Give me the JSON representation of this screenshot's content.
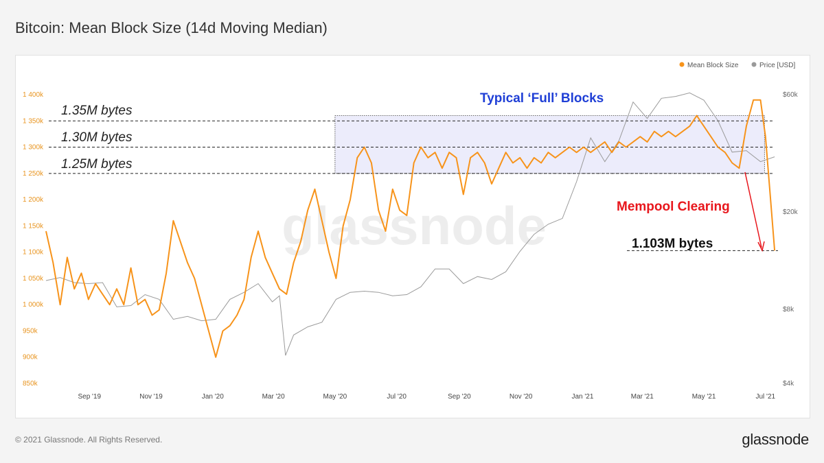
{
  "title": "Bitcoin: Mean Block Size (14d Moving Median)",
  "footer": {
    "copyright": "© 2021 Glassnode. All Rights Reserved.",
    "logo": "glassnode"
  },
  "watermark": "glassnode",
  "colors": {
    "block_size": "#f7931a",
    "price": "#9a9a9a",
    "highlight": "#ececfb",
    "blue": "#1f3fd6",
    "red": "#e8161c"
  },
  "annotations": {
    "typical_full": "Typical ‘Full’ Blocks",
    "l135": "1.35M bytes",
    "l130": "1.30M bytes",
    "l125": "1.25M bytes",
    "mempool": "Mempool Clearing",
    "l1103": "1.103M bytes"
  },
  "chart_data": {
    "type": "line",
    "title": "Bitcoin: Mean Block Size (14d Moving Median)",
    "legend": {
      "position": "top-right",
      "items": [
        "Mean Block Size",
        "Price [USD]"
      ]
    },
    "x_ticks": [
      "Sep '19",
      "Nov '19",
      "Jan '20",
      "Mar '20",
      "May '20",
      "Jul '20",
      "Sep '20",
      "Nov '20",
      "Jan '21",
      "Mar '21",
      "May '21",
      "Jul '21"
    ],
    "x_ticks_dates": [
      "2019-09-01",
      "2019-11-01",
      "2020-01-01",
      "2020-03-01",
      "2020-05-01",
      "2020-07-01",
      "2020-09-01",
      "2020-11-01",
      "2021-01-01",
      "2021-03-01",
      "2021-05-01",
      "2021-07-01"
    ],
    "y_left": {
      "ticks": [
        "850k",
        "900k",
        "950k",
        "1 000k",
        "1 050k",
        "1 100k",
        "1 150k",
        "1 200k",
        "1 250k",
        "1 300k",
        "1 350k",
        "1 400k"
      ],
      "ylim": [
        850000,
        1400000
      ]
    },
    "y_right": {
      "scale": "log",
      "ticks": [
        "$4k",
        "$8k",
        "$20k",
        "$60k"
      ],
      "values": [
        4000,
        8000,
        20000,
        60000
      ]
    },
    "series": [
      {
        "name": "Mean Block Size",
        "axis": "left",
        "points": [
          [
            "2019-07-20",
            1140000
          ],
          [
            "2019-07-27",
            1080000
          ],
          [
            "2019-08-03",
            1000000
          ],
          [
            "2019-08-10",
            1090000
          ],
          [
            "2019-08-17",
            1030000
          ],
          [
            "2019-08-24",
            1060000
          ],
          [
            "2019-08-31",
            1010000
          ],
          [
            "2019-09-07",
            1040000
          ],
          [
            "2019-09-14",
            1020000
          ],
          [
            "2019-09-21",
            1000000
          ],
          [
            "2019-09-28",
            1030000
          ],
          [
            "2019-10-05",
            1000000
          ],
          [
            "2019-10-12",
            1070000
          ],
          [
            "2019-10-19",
            1000000
          ],
          [
            "2019-10-26",
            1010000
          ],
          [
            "2019-11-02",
            980000
          ],
          [
            "2019-11-09",
            990000
          ],
          [
            "2019-11-16",
            1060000
          ],
          [
            "2019-11-23",
            1160000
          ],
          [
            "2019-11-30",
            1120000
          ],
          [
            "2019-12-07",
            1080000
          ],
          [
            "2019-12-14",
            1050000
          ],
          [
            "2019-12-21",
            1000000
          ],
          [
            "2019-12-28",
            950000
          ],
          [
            "2020-01-04",
            900000
          ],
          [
            "2020-01-11",
            950000
          ],
          [
            "2020-01-18",
            960000
          ],
          [
            "2020-01-25",
            980000
          ],
          [
            "2020-02-01",
            1010000
          ],
          [
            "2020-02-08",
            1090000
          ],
          [
            "2020-02-15",
            1140000
          ],
          [
            "2020-02-22",
            1090000
          ],
          [
            "2020-02-29",
            1060000
          ],
          [
            "2020-03-07",
            1030000
          ],
          [
            "2020-03-14",
            1020000
          ],
          [
            "2020-03-21",
            1080000
          ],
          [
            "2020-03-28",
            1120000
          ],
          [
            "2020-04-04",
            1180000
          ],
          [
            "2020-04-11",
            1220000
          ],
          [
            "2020-04-18",
            1160000
          ],
          [
            "2020-04-25",
            1100000
          ],
          [
            "2020-05-02",
            1050000
          ],
          [
            "2020-05-09",
            1150000
          ],
          [
            "2020-05-16",
            1200000
          ],
          [
            "2020-05-23",
            1280000
          ],
          [
            "2020-05-30",
            1300000
          ],
          [
            "2020-06-06",
            1270000
          ],
          [
            "2020-06-13",
            1180000
          ],
          [
            "2020-06-20",
            1140000
          ],
          [
            "2020-06-27",
            1220000
          ],
          [
            "2020-07-04",
            1180000
          ],
          [
            "2020-07-11",
            1170000
          ],
          [
            "2020-07-18",
            1270000
          ],
          [
            "2020-07-25",
            1300000
          ],
          [
            "2020-08-01",
            1280000
          ],
          [
            "2020-08-08",
            1290000
          ],
          [
            "2020-08-15",
            1260000
          ],
          [
            "2020-08-22",
            1290000
          ],
          [
            "2020-08-29",
            1280000
          ],
          [
            "2020-09-05",
            1210000
          ],
          [
            "2020-09-12",
            1280000
          ],
          [
            "2020-09-19",
            1290000
          ],
          [
            "2020-09-26",
            1270000
          ],
          [
            "2020-10-03",
            1230000
          ],
          [
            "2020-10-10",
            1260000
          ],
          [
            "2020-10-17",
            1290000
          ],
          [
            "2020-10-24",
            1270000
          ],
          [
            "2020-10-31",
            1280000
          ],
          [
            "2020-11-07",
            1260000
          ],
          [
            "2020-11-14",
            1280000
          ],
          [
            "2020-11-21",
            1270000
          ],
          [
            "2020-11-28",
            1290000
          ],
          [
            "2020-12-05",
            1280000
          ],
          [
            "2020-12-12",
            1290000
          ],
          [
            "2020-12-19",
            1300000
          ],
          [
            "2020-12-26",
            1290000
          ],
          [
            "2021-01-02",
            1300000
          ],
          [
            "2021-01-09",
            1290000
          ],
          [
            "2021-01-16",
            1300000
          ],
          [
            "2021-01-23",
            1310000
          ],
          [
            "2021-01-30",
            1290000
          ],
          [
            "2021-02-06",
            1310000
          ],
          [
            "2021-02-13",
            1300000
          ],
          [
            "2021-02-20",
            1310000
          ],
          [
            "2021-02-27",
            1320000
          ],
          [
            "2021-03-06",
            1310000
          ],
          [
            "2021-03-13",
            1330000
          ],
          [
            "2021-03-20",
            1320000
          ],
          [
            "2021-03-27",
            1330000
          ],
          [
            "2021-04-03",
            1320000
          ],
          [
            "2021-04-10",
            1330000
          ],
          [
            "2021-04-17",
            1340000
          ],
          [
            "2021-04-24",
            1360000
          ],
          [
            "2021-05-01",
            1340000
          ],
          [
            "2021-05-08",
            1320000
          ],
          [
            "2021-05-15",
            1300000
          ],
          [
            "2021-05-22",
            1290000
          ],
          [
            "2021-05-29",
            1270000
          ],
          [
            "2021-06-05",
            1260000
          ],
          [
            "2021-06-12",
            1340000
          ],
          [
            "2021-06-19",
            1390000
          ],
          [
            "2021-06-26",
            1390000
          ],
          [
            "2021-07-01",
            1320000
          ],
          [
            "2021-07-06",
            1200000
          ],
          [
            "2021-07-10",
            1103000
          ]
        ]
      },
      {
        "name": "Price [USD]",
        "axis": "right",
        "points": [
          [
            "2019-07-20",
            10500
          ],
          [
            "2019-08-03",
            10800
          ],
          [
            "2019-08-17",
            10300
          ],
          [
            "2019-08-31",
            10200
          ],
          [
            "2019-09-14",
            10300
          ],
          [
            "2019-09-28",
            8200
          ],
          [
            "2019-10-12",
            8300
          ],
          [
            "2019-10-26",
            9200
          ],
          [
            "2019-11-09",
            8800
          ],
          [
            "2019-11-23",
            7300
          ],
          [
            "2019-12-07",
            7500
          ],
          [
            "2019-12-21",
            7200
          ],
          [
            "2020-01-04",
            7300
          ],
          [
            "2020-01-18",
            8800
          ],
          [
            "2020-02-01",
            9400
          ],
          [
            "2020-02-15",
            10200
          ],
          [
            "2020-02-29",
            8600
          ],
          [
            "2020-03-07",
            9100
          ],
          [
            "2020-03-13",
            5200
          ],
          [
            "2020-03-21",
            6300
          ],
          [
            "2020-04-04",
            6800
          ],
          [
            "2020-04-18",
            7100
          ],
          [
            "2020-05-02",
            8800
          ],
          [
            "2020-05-16",
            9400
          ],
          [
            "2020-05-30",
            9500
          ],
          [
            "2020-06-13",
            9400
          ],
          [
            "2020-06-27",
            9100
          ],
          [
            "2020-07-11",
            9200
          ],
          [
            "2020-07-25",
            9900
          ],
          [
            "2020-08-08",
            11700
          ],
          [
            "2020-08-22",
            11700
          ],
          [
            "2020-09-05",
            10200
          ],
          [
            "2020-09-19",
            10900
          ],
          [
            "2020-10-03",
            10600
          ],
          [
            "2020-10-17",
            11400
          ],
          [
            "2020-10-31",
            13800
          ],
          [
            "2020-11-14",
            16200
          ],
          [
            "2020-11-28",
            17800
          ],
          [
            "2020-12-12",
            18800
          ],
          [
            "2020-12-26",
            26500
          ],
          [
            "2021-01-09",
            40000
          ],
          [
            "2021-01-23",
            32000
          ],
          [
            "2021-02-06",
            39000
          ],
          [
            "2021-02-20",
            56000
          ],
          [
            "2021-03-06",
            48000
          ],
          [
            "2021-03-20",
            58000
          ],
          [
            "2021-04-03",
            59000
          ],
          [
            "2021-04-17",
            61000
          ],
          [
            "2021-05-01",
            57000
          ],
          [
            "2021-05-15",
            47000
          ],
          [
            "2021-05-29",
            35000
          ],
          [
            "2021-06-12",
            35500
          ],
          [
            "2021-06-26",
            32000
          ],
          [
            "2021-07-10",
            33500
          ]
        ]
      }
    ],
    "annotations": {
      "reference_lines": [
        1350000,
        1300000,
        1250000,
        1103000
      ],
      "highlight_band": {
        "from": "2020-05-01",
        "to": "2021-06-30",
        "y": [
          1250000,
          1360000
        ]
      }
    }
  }
}
